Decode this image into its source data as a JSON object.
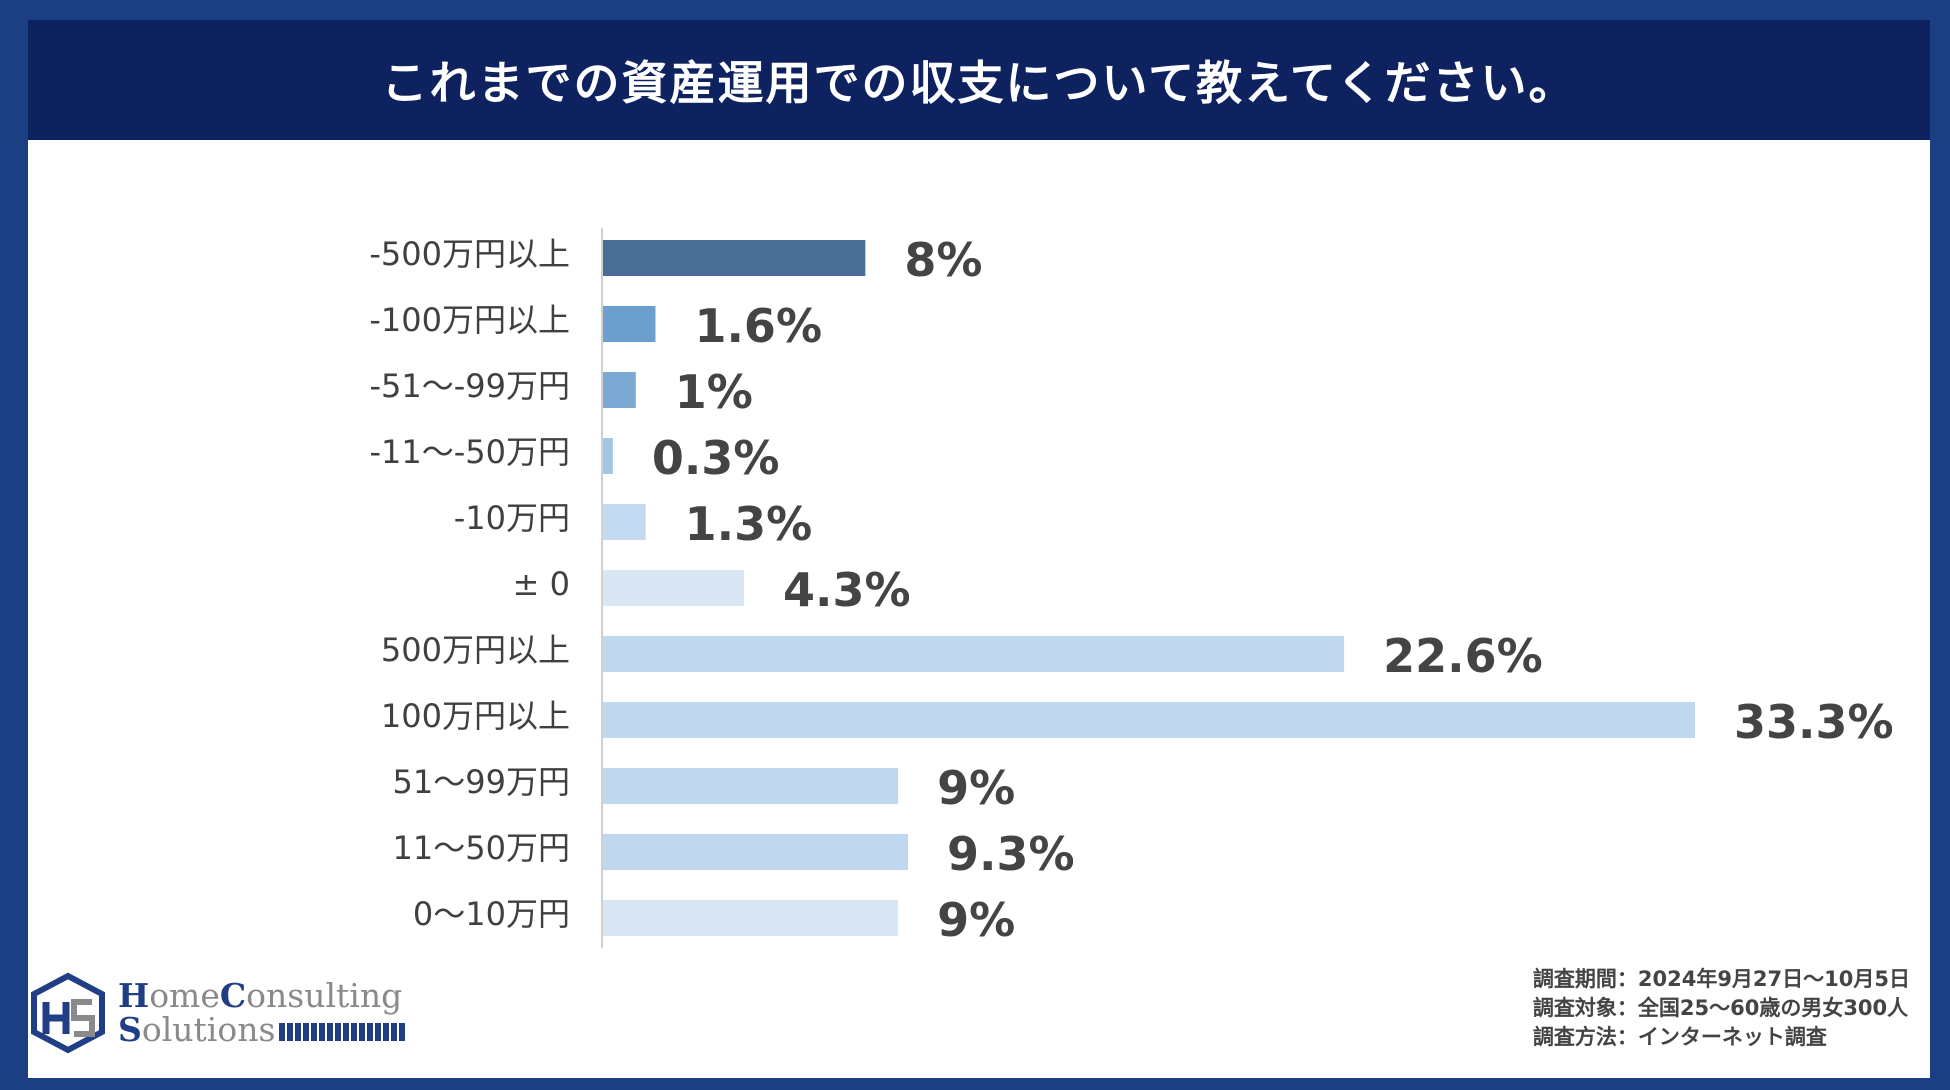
{
  "title": "これまでの資産運用での収支について教えてください。",
  "colors": {
    "title_bg": "#0e2260",
    "frame": "#1b3f82",
    "highlight_label": "#0e2260",
    "label": "#444444"
  },
  "chart_data": {
    "type": "bar",
    "orientation": "horizontal",
    "title": "これまでの資産運用での収支について教えてください。",
    "categories": [
      "-500万円以上",
      "-100万円以上",
      "-51〜-99万円",
      "-11〜-50万円",
      "-10万円",
      "± 0",
      "500万円以上",
      "100万円以上",
      "51〜99万円",
      "11〜50万円",
      "0〜10万円"
    ],
    "values": [
      8,
      1.6,
      1,
      0.3,
      1.3,
      4.3,
      22.6,
      33.3,
      9,
      9.3,
      9
    ],
    "value_labels": [
      "8%",
      "1.6%",
      "1%",
      "0.3%",
      "1.3%",
      "4.3%",
      "22.6%",
      "33.3%",
      "9%",
      "9.3%",
      "9%"
    ],
    "bar_colors": [
      "#4a6d96",
      "#6c9fcd",
      "#7ca9d4",
      "#a3c5e6",
      "#c3daf0",
      "#d9e7f5",
      "#c0d8ef",
      "#c0d8ef",
      "#c0d8ef",
      "#c0d8ef",
      "#d8e6f4"
    ],
    "unit": "%",
    "xlim": [
      0,
      33.3
    ]
  },
  "notes": [
    "調査期間：2024年9月27日〜10月5日",
    "調査対象：全国25〜60歳の男女300人",
    "調査方法：インターネット調査"
  ],
  "logo": {
    "word1_cap": "H",
    "word1_rest": "ome",
    "word2_cap": "C",
    "word2_rest": "onsulting",
    "word3_cap": "S",
    "word3_rest": "olutions",
    "icon": "hs-cube-logo-icon"
  }
}
